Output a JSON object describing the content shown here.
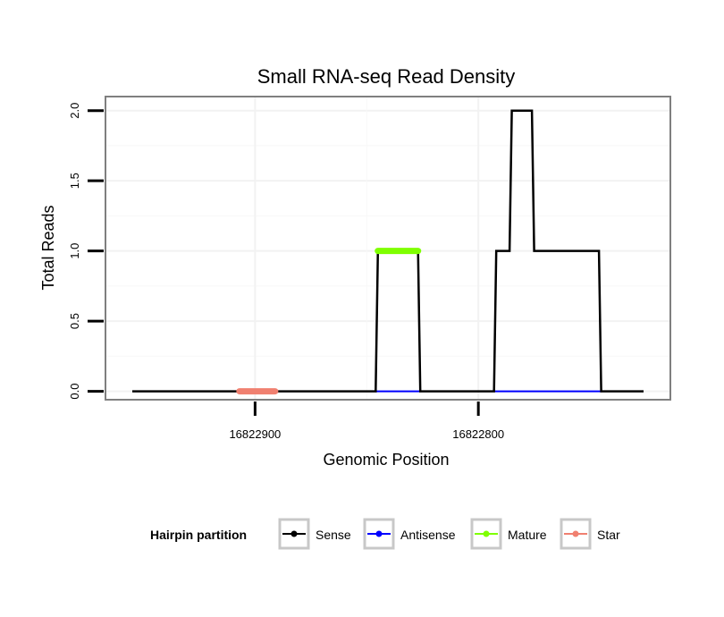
{
  "chart_data": {
    "type": "line",
    "title": "Small RNA-seq Read Density",
    "xlabel": "Genomic Position",
    "ylabel": "Total Reads",
    "x_reversed": true,
    "xlim": [
      16822967,
      16822714
    ],
    "ylim": [
      -0.06,
      2.1
    ],
    "x_ticks": [
      {
        "value": 16822900,
        "label": "16822900"
      },
      {
        "value": 16822800,
        "label": "16822800"
      }
    ],
    "y_ticks": [
      {
        "value": 0,
        "label": "0.0"
      },
      {
        "value": 0.5,
        "label": "0.5"
      },
      {
        "value": 1,
        "label": "1.0"
      },
      {
        "value": 1.5,
        "label": "1.5"
      },
      {
        "value": 2,
        "label": "2.0"
      }
    ],
    "grid": true,
    "series": [
      {
        "name": "Sense",
        "color": "#000000",
        "x": [
          16822955,
          16822846,
          16822845,
          16822827,
          16822826,
          16822793,
          16822792,
          16822786,
          16822785,
          16822776,
          16822775,
          16822765,
          16822764,
          16822746,
          16822745,
          16822726
        ],
        "values": [
          0,
          0,
          1,
          1,
          0,
          0,
          1,
          1,
          2,
          2,
          1,
          1,
          1,
          1,
          0,
          0
        ]
      },
      {
        "name": "Antisense",
        "color": "#0000ff",
        "x": [
          16822846,
          16822826,
          16822793,
          16822745
        ],
        "values": [
          0,
          0,
          0,
          0
        ]
      },
      {
        "name": "Mature",
        "color": "#7fff00",
        "x": [
          16822845,
          16822827
        ],
        "values": [
          1,
          1
        ]
      },
      {
        "name": "Star",
        "color": "#f08070",
        "x": [
          16822907,
          16822891
        ],
        "values": [
          0,
          0
        ]
      }
    ],
    "legend": {
      "title": "Hairpin partition",
      "position": "bottom",
      "entries": [
        {
          "label": "Sense",
          "color": "#000000"
        },
        {
          "label": "Antisense",
          "color": "#0000ff"
        },
        {
          "label": "Mature",
          "color": "#7fff00"
        },
        {
          "label": "Star",
          "color": "#f08070"
        }
      ]
    }
  }
}
